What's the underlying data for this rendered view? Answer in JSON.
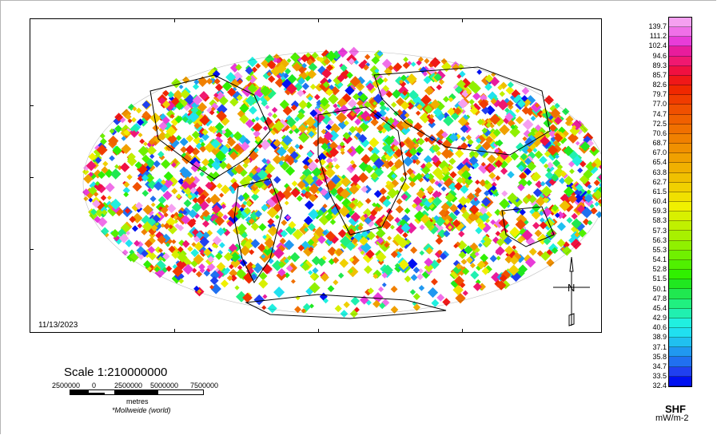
{
  "map": {
    "date": "11/13/2023",
    "colors": {
      "ocean": "#ffffff",
      "land_boundaries": "#000000"
    }
  },
  "scale": {
    "title": "Scale 1:210000000",
    "numbers": [
      "2500000",
      "0",
      "2500000",
      "5000000",
      "7500000"
    ],
    "units": "metres",
    "projection": "*Mollweide (world)"
  },
  "legend": {
    "title": "SHF",
    "units": "mW/m-2",
    "values": [
      "139.7",
      "111.2",
      "102.4",
      "94.6",
      "89.3",
      "85.7",
      "82.6",
      "79.7",
      "77.0",
      "74.7",
      "72.5",
      "70.6",
      "68.7",
      "67.0",
      "65.4",
      "63.8",
      "62.7",
      "61.5",
      "60.4",
      "59.3",
      "58.3",
      "57.3",
      "56.3",
      "55.3",
      "54.1",
      "52.8",
      "51.5",
      "50.1",
      "47.8",
      "45.4",
      "42.9",
      "40.6",
      "38.9",
      "37.1",
      "35.8",
      "34.7",
      "33.5",
      "32.4"
    ],
    "colors": [
      "#f5a0f0",
      "#f070e8",
      "#e83cd8",
      "#e81c9c",
      "#f01870",
      "#f01040",
      "#f01818",
      "#f02800",
      "#f03c00",
      "#f05000",
      "#f06000",
      "#f07000",
      "#f08000",
      "#f09000",
      "#f0a000",
      "#f0b000",
      "#f0c000",
      "#f0d000",
      "#f0e000",
      "#f0f000",
      "#d8f000",
      "#c0f000",
      "#a8f000",
      "#90f000",
      "#70f000",
      "#50f000",
      "#30f000",
      "#20e820",
      "#20e850",
      "#20f080",
      "#20f0b0",
      "#20f0e0",
      "#20e0f0",
      "#20c0f0",
      "#2098f0",
      "#2070f0",
      "#2040f0",
      "#0010f0"
    ]
  }
}
